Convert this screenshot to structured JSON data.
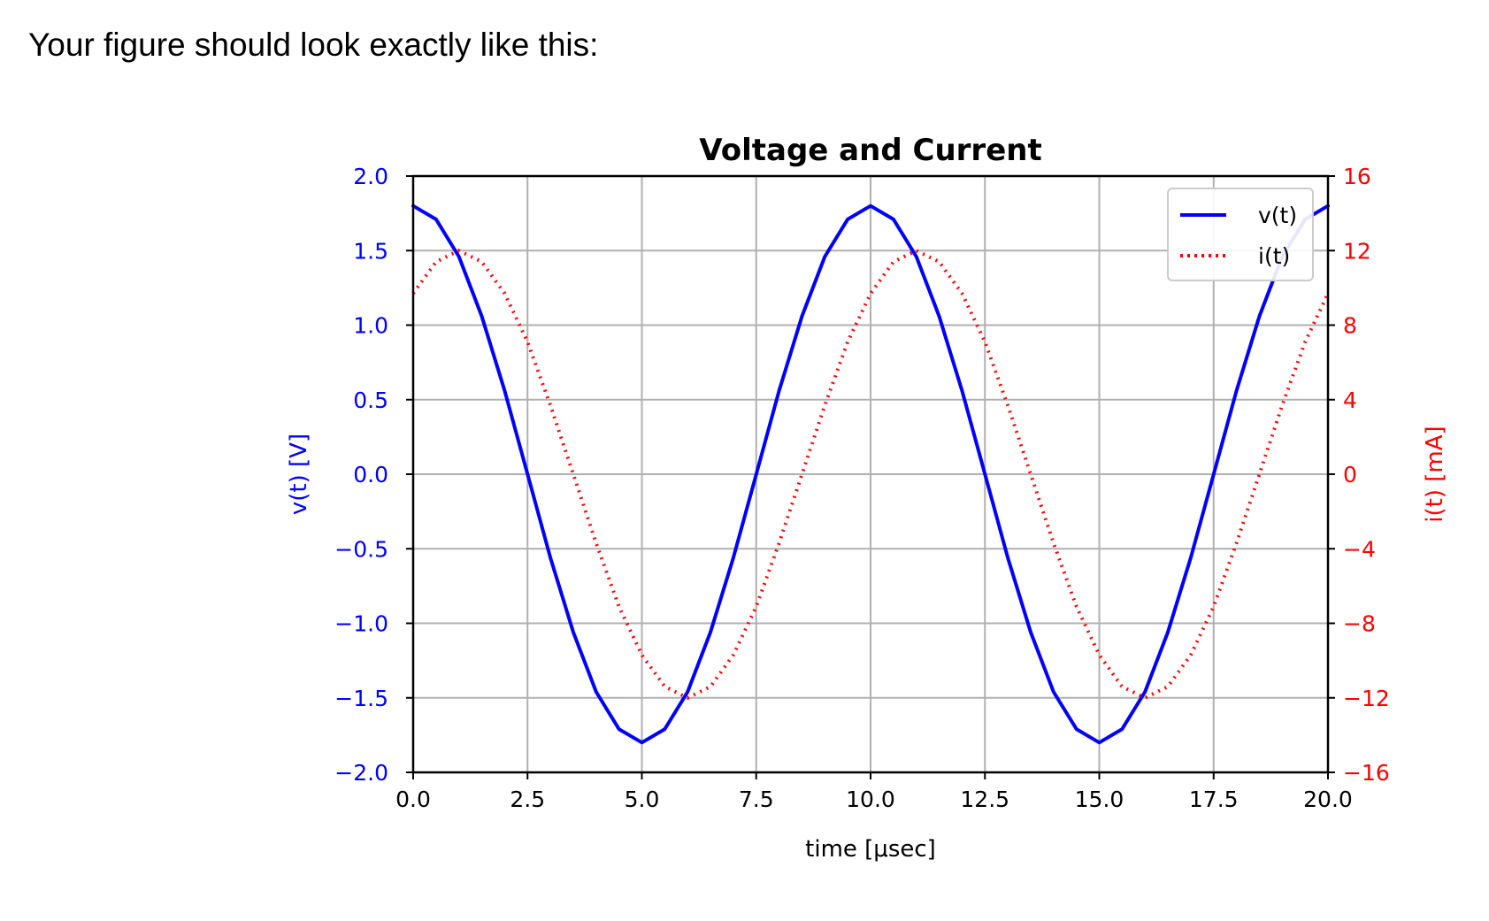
{
  "caption": "Your figure should look exactly like this:",
  "chart_data": {
    "type": "line",
    "title": "Voltage and Current",
    "xlabel": "time   [μsec]",
    "ylabel_left": "v(t)  [V]",
    "ylabel_right": "i(t)  [mA]",
    "xlim": [
      0,
      20
    ],
    "ylim_left": [
      -2,
      2
    ],
    "ylim_right": [
      -16,
      16
    ],
    "xticks": [
      "0.0",
      "2.5",
      "5.0",
      "7.5",
      "10.0",
      "12.5",
      "15.0",
      "17.5",
      "20.0"
    ],
    "yticks_left": [
      "2.0",
      "1.5",
      "1.0",
      "0.5",
      "0.0",
      "−0.5",
      "−1.0",
      "−1.5",
      "−2.0"
    ],
    "yticks_right": [
      "16",
      "12",
      "8",
      "4",
      "0",
      "−4",
      "−8",
      "−12",
      "−16"
    ],
    "grid": true,
    "legend_position": "upper-right",
    "series": [
      {
        "name": "v(t)",
        "axis": "left",
        "style": "solid",
        "color": "#0000ff",
        "x": [
          0,
          0.5,
          1,
          1.5,
          2,
          2.5,
          3,
          3.5,
          4,
          4.5,
          5,
          5.5,
          6,
          6.5,
          7,
          7.5,
          8,
          8.5,
          9,
          9.5,
          10,
          10.5,
          11,
          11.5,
          12,
          12.5,
          13,
          13.5,
          14,
          14.5,
          15,
          15.5,
          16,
          16.5,
          17,
          17.5,
          18,
          18.5,
          19,
          19.5,
          20
        ],
        "y": [
          1.8,
          1.71,
          1.46,
          1.06,
          0.56,
          0,
          -0.56,
          -1.06,
          -1.46,
          -1.71,
          -1.8,
          -1.71,
          -1.46,
          -1.06,
          -0.56,
          0,
          0.56,
          1.06,
          1.46,
          1.71,
          1.8,
          1.71,
          1.46,
          1.06,
          0.56,
          0,
          -0.56,
          -1.06,
          -1.46,
          -1.71,
          -1.8,
          -1.71,
          -1.46,
          -1.06,
          -0.56,
          0,
          0.56,
          1.06,
          1.46,
          1.71,
          1.8
        ]
      },
      {
        "name": "i(t)",
        "axis": "right",
        "style": "dotted",
        "color": "#ff0000",
        "x": [
          0,
          0.5,
          1,
          1.5,
          2,
          2.5,
          3,
          3.5,
          4,
          4.5,
          5,
          5.5,
          6,
          6.5,
          7,
          7.5,
          8,
          8.5,
          9,
          9.5,
          10,
          10.5,
          11,
          11.5,
          12,
          12.5,
          13,
          13.5,
          14,
          14.5,
          15,
          15.5,
          16,
          16.5,
          17,
          17.5,
          18,
          18.5,
          19,
          19.5,
          20
        ],
        "y": [
          9.7,
          11.4,
          12,
          11.4,
          9.7,
          7.1,
          3.7,
          0,
          -3.7,
          -7.1,
          -9.7,
          -11.4,
          -12,
          -11.4,
          -9.7,
          -7.1,
          -3.7,
          0,
          3.7,
          7.1,
          9.7,
          11.4,
          12,
          11.4,
          9.7,
          7.1,
          3.7,
          0,
          -3.7,
          -7.1,
          -9.7,
          -11.4,
          -12,
          -11.4,
          -9.7,
          -7.1,
          -3.7,
          0,
          3.7,
          7.1,
          9.7
        ]
      }
    ]
  }
}
